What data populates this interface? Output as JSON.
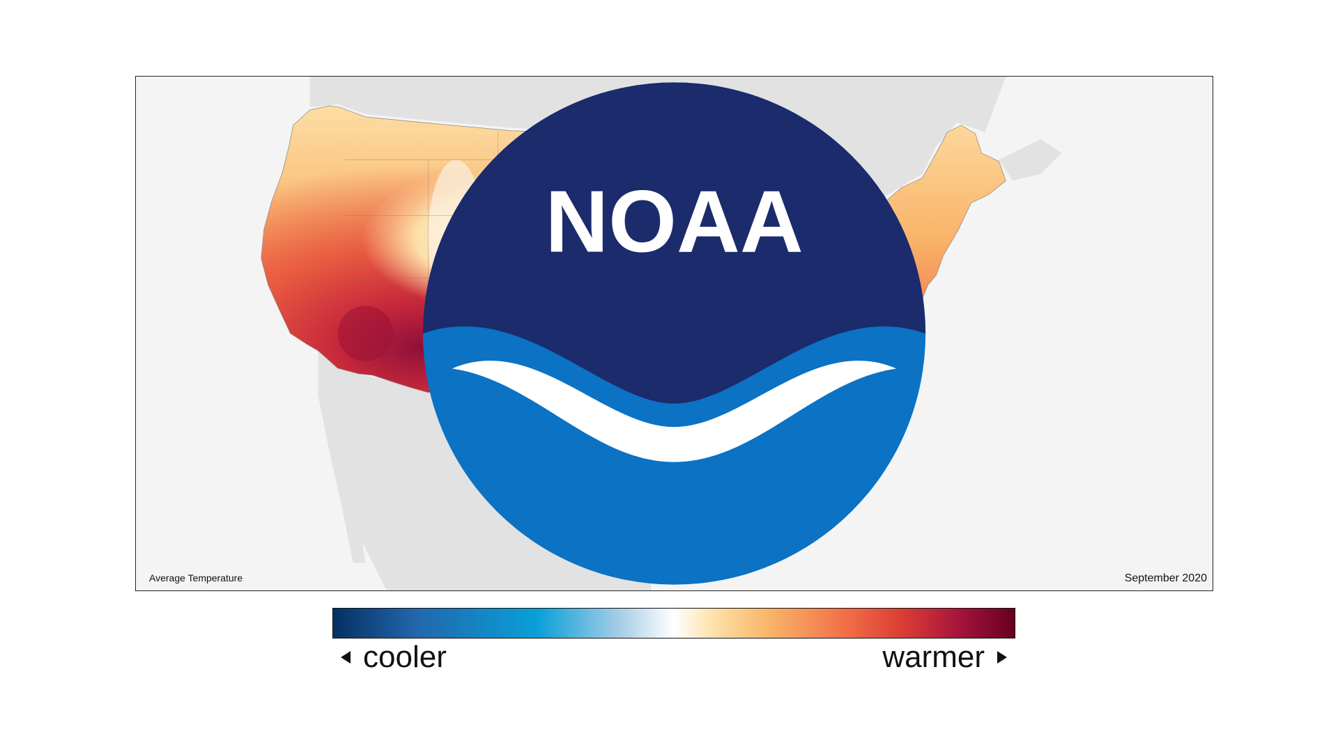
{
  "map": {
    "caption": "Average Temperature",
    "date": "September 2020",
    "colors": {
      "land_background": "#e2e2e2",
      "ocean_background": "#f4f4f4",
      "warm_core": "#a5133d",
      "warm": "#e2503d",
      "mild": "#f7a35c",
      "light": "#fde3ae",
      "cool_patch": "#f4f6fa"
    }
  },
  "logo": {
    "text": "NOAA",
    "colors": {
      "top": "#1b2b6b",
      "bottom": "#0b72c4"
    }
  },
  "legend": {
    "cool_label": "cooler",
    "warm_label": "warmer"
  }
}
